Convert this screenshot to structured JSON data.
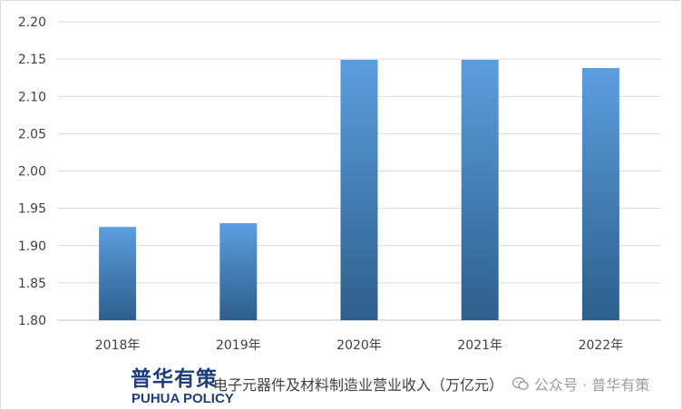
{
  "chart_data": {
    "type": "bar",
    "title": "",
    "xlabel": "",
    "ylabel": "",
    "categories": [
      "2018年",
      "2019年",
      "2020年",
      "2021年",
      "2022年"
    ],
    "values": [
      1.925,
      1.93,
      2.149,
      2.149,
      2.138
    ],
    "ylim": [
      1.8,
      2.2
    ],
    "yticks": [
      "1.80",
      "1.85",
      "1.90",
      "1.95",
      "2.00",
      "2.05",
      "2.10",
      "2.15",
      "2.20"
    ],
    "grid": true,
    "legend": "none",
    "bar_gradient": [
      "#5b9ee0",
      "#2e5f8c"
    ]
  },
  "caption": "电子元器件及材料制造业营业收入（万亿元）",
  "logo": {
    "cn": "普华有策",
    "en": "PUHUA POLICY"
  },
  "watermark": {
    "text": "公众号 · 普华有策",
    "icon": "wechat-icon"
  }
}
